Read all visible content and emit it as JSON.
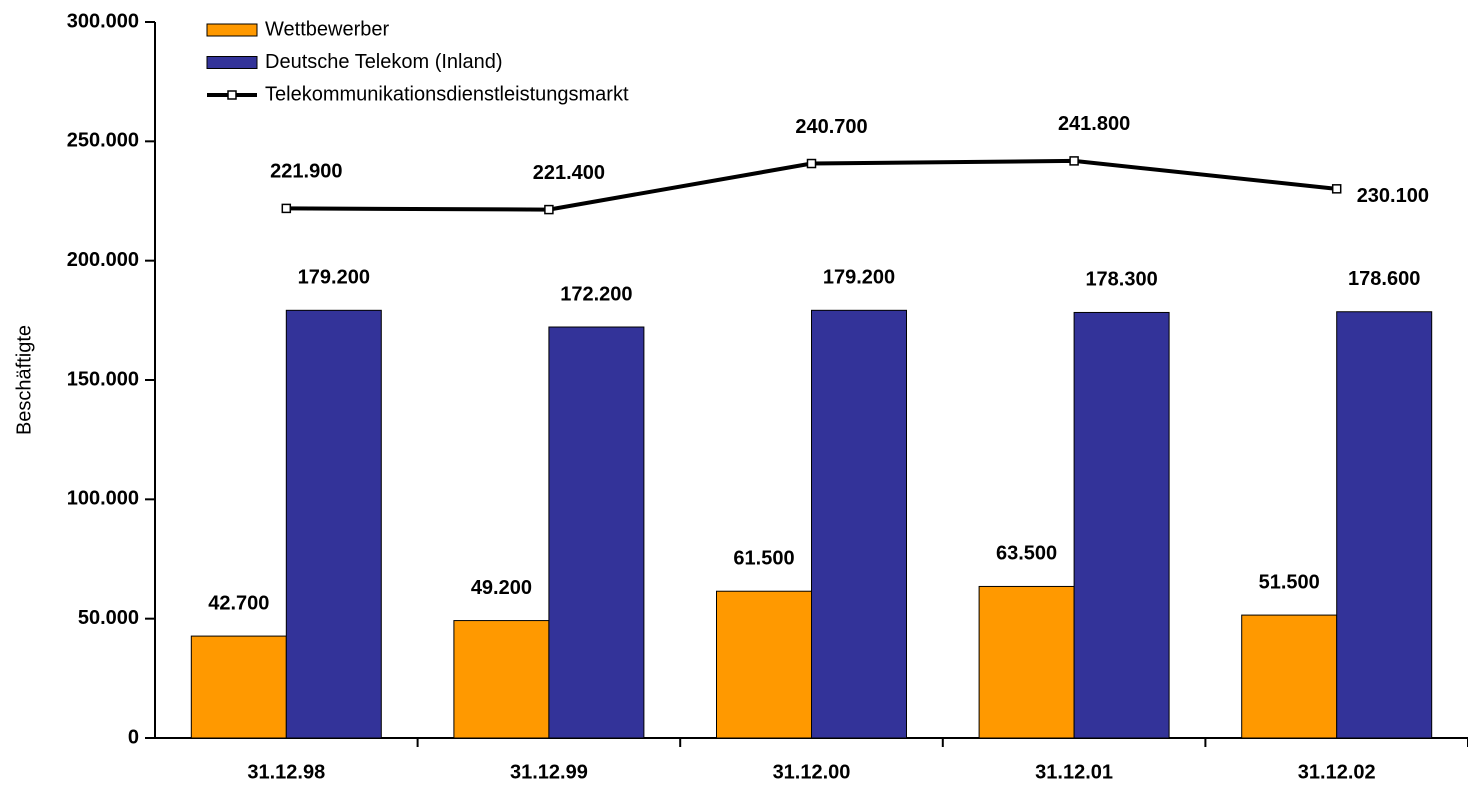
{
  "chart_data": {
    "type": "bar",
    "y_label": "Beschäftigte",
    "categories": [
      "31.12.98",
      "31.12.99",
      "31.12.00",
      "31.12.01",
      "31.12.02"
    ],
    "series": [
      {
        "name": "Wettbewerber",
        "color": "#ff9900",
        "values": [
          42700,
          49200,
          61500,
          63500,
          51500
        ],
        "value_labels": [
          "42.700",
          "49.200",
          "61.500",
          "63.500",
          "51.500"
        ]
      },
      {
        "name": "Deutsche Telekom (Inland)",
        "color": "#333399",
        "values": [
          179200,
          172200,
          179200,
          178300,
          178600
        ],
        "value_labels": [
          "179.200",
          "172.200",
          "179.200",
          "178.300",
          "178.600"
        ]
      },
      {
        "name": "Telekommunikationsdienstleistungsmarkt",
        "type": "line",
        "color": "#000000",
        "values": [
          221900,
          221400,
          240700,
          241800,
          230100
        ],
        "value_labels": [
          "221.900",
          "221.400",
          "240.700",
          "241.800",
          "230.100"
        ]
      }
    ],
    "ylim": [
      0,
      300000
    ],
    "yticks": [
      0,
      {
        "value": 50000,
        "label": "50.000"
      },
      {
        "value": 100000,
        "label": "100.000"
      },
      {
        "value": 150000,
        "label": "150.000"
      },
      {
        "value": 200000,
        "label": "200.000"
      },
      {
        "value": 250000,
        "label": "250.000"
      },
      {
        "value": 300000,
        "label": "300.000"
      }
    ],
    "grid": false
  }
}
